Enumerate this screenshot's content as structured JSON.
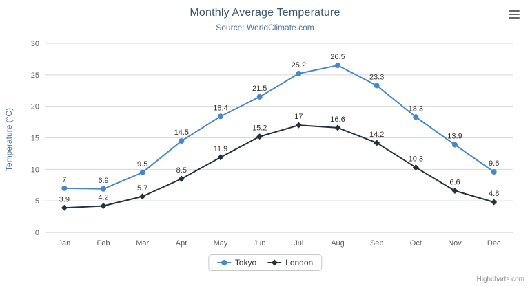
{
  "chart_data": {
    "type": "line",
    "title": "Monthly Average Temperature",
    "subtitle": "Source: WorldClimate.com",
    "categories": [
      "Jan",
      "Feb",
      "Mar",
      "Apr",
      "May",
      "Jun",
      "Jul",
      "Aug",
      "Sep",
      "Oct",
      "Nov",
      "Dec"
    ],
    "series": [
      {
        "name": "Tokyo",
        "color": "#4a87c7",
        "marker": "circle",
        "values": [
          7,
          6.9,
          9.5,
          14.5,
          18.4,
          21.5,
          25.2,
          26.5,
          23.3,
          18.3,
          13.9,
          9.6
        ]
      },
      {
        "name": "London",
        "color": "#22313f",
        "marker": "diamond",
        "values": [
          3.9,
          4.2,
          5.7,
          8.5,
          11.9,
          15.2,
          17,
          16.6,
          14.2,
          10.3,
          6.6,
          4.8
        ]
      }
    ],
    "xlabel": "",
    "ylabel": "Temperature (°C)",
    "ylim": [
      0,
      30
    ],
    "ytick_step": 5,
    "grid": true,
    "legend_position": "bottom"
  },
  "colors": {
    "title": "#3e576f",
    "subtitle": "#4d759e",
    "gridline": "#d8d8d8",
    "axis_line": "#c0c8d0",
    "tick_label": "#606060",
    "data_label": "#333333",
    "legend_border": "#c9c9c9"
  },
  "credits": "Highcharts.com"
}
